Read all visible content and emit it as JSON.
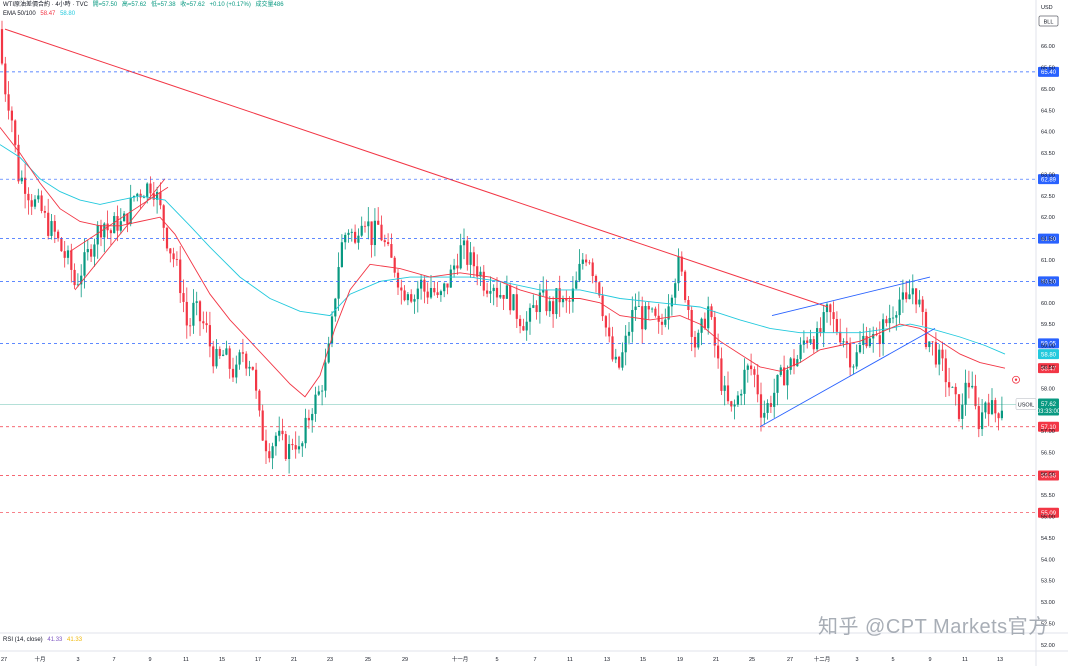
{
  "header": {
    "symbol": "WTI原油差價合約 · 4小時 · TVC",
    "open": "開=57.50",
    "high": "高=57.62",
    "low": "低=57.38",
    "close": "收=57.62",
    "change": "+0.10 (+0.17%)",
    "volume": "成交量486"
  },
  "ema_legend": {
    "label": "EMA 50/100",
    "ema50": "58.47",
    "ema100": "58.80"
  },
  "rsi_legend": {
    "label": "RSI (14, close)",
    "value": "41.33",
    "ma": "41.33"
  },
  "axis": {
    "currency": "USD",
    "ticker_badge": "BLL",
    "price_min": 52.3,
    "price_max": 66.8,
    "ticks": [
      "66.00",
      "65.50",
      "65.00",
      "64.50",
      "64.00",
      "63.50",
      "63.00",
      "62.50",
      "62.00",
      "61.50",
      "61.00",
      "60.50",
      "60.00",
      "59.50",
      "59.00",
      "58.50",
      "58.00",
      "57.50",
      "57.00",
      "56.50",
      "56.00",
      "55.50",
      "55.00",
      "54.50",
      "54.00",
      "53.50",
      "53.00",
      "52.50"
    ],
    "ticks_low": [
      "52.00"
    ],
    "dates": [
      "27",
      "十月",
      "3",
      "7",
      "9",
      "11",
      "15",
      "17",
      "21",
      "23",
      "25",
      "29",
      "十一月",
      "5",
      "7",
      "11",
      "13",
      "15",
      "19",
      "21",
      "25",
      "27",
      "十二月",
      "3",
      "5",
      "9",
      "11",
      "13"
    ]
  },
  "price_tags": [
    {
      "price": 65.4,
      "label": "65.40",
      "color": "#2962ff"
    },
    {
      "price": 62.89,
      "label": "62.89",
      "color": "#2962ff"
    },
    {
      "price": 61.5,
      "label": "61.50",
      "color": "#2962ff"
    },
    {
      "price": 60.5,
      "label": "60.50",
      "color": "#2962ff"
    },
    {
      "price": 59.05,
      "label": "59.05",
      "color": "#2962ff"
    },
    {
      "price": 58.8,
      "label": "58.80",
      "color": "#22c9dd"
    },
    {
      "price": 58.47,
      "label": "58.47",
      "color": "#f23645"
    },
    {
      "price": 57.1,
      "label": "57.10",
      "color": "#f23645"
    },
    {
      "price": 55.96,
      "label": "55.96",
      "color": "#f23645"
    },
    {
      "price": 55.09,
      "label": "55.09",
      "color": "#f23645"
    }
  ],
  "last_price": {
    "symbol": "USOIL",
    "price": "57.62",
    "countdown": "03:33:00",
    "color": "#089981"
  },
  "watermark": "知乎 @CPT Markets官方",
  "colors": {
    "up": "#089981",
    "down": "#f23645",
    "ema50": "#f23645",
    "ema100": "#22c9dd",
    "trend": "#f23645",
    "channel": "#2962ff"
  },
  "chart_data": {
    "type": "candlestick",
    "title": "WTI原油差價合約 · 4小時 · TVC",
    "ylim": [
      52.3,
      66.8
    ],
    "price_path": [
      [
        0,
        66.4
      ],
      [
        3,
        65.2
      ],
      [
        8,
        64.8
      ],
      [
        12,
        64.3
      ],
      [
        18,
        63.0
      ],
      [
        25,
        62.8
      ],
      [
        32,
        62.4
      ],
      [
        40,
        62.2
      ],
      [
        48,
        61.8
      ],
      [
        55,
        61.6
      ],
      [
        62,
        61.2
      ],
      [
        70,
        60.9
      ],
      [
        75,
        60.4
      ],
      [
        80,
        60.7
      ],
      [
        86,
        61.0
      ],
      [
        92,
        61.4
      ],
      [
        98,
        61.7
      ],
      [
        104,
        61.9
      ],
      [
        110,
        61.6
      ],
      [
        116,
        61.9
      ],
      [
        122,
        61.8
      ],
      [
        128,
        62.1
      ],
      [
        134,
        62.5
      ],
      [
        140,
        62.6
      ],
      [
        146,
        62.7
      ],
      [
        152,
        62.8
      ],
      [
        158,
        62.4
      ],
      [
        163,
        61.9
      ],
      [
        168,
        61.4
      ],
      [
        173,
        61.1
      ],
      [
        178,
        60.7
      ],
      [
        183,
        60.1
      ],
      [
        188,
        59.3
      ],
      [
        194,
        59.9
      ],
      [
        200,
        59.6
      ],
      [
        206,
        59.4
      ],
      [
        212,
        58.8
      ],
      [
        218,
        58.6
      ],
      [
        224,
        58.8
      ],
      [
        230,
        58.5
      ],
      [
        236,
        58.3
      ],
      [
        242,
        58.9
      ],
      [
        248,
        58.6
      ],
      [
        252,
        58.7
      ],
      [
        258,
        57.4
      ],
      [
        264,
        56.8
      ],
      [
        270,
        56.6
      ],
      [
        276,
        56.9
      ],
      [
        282,
        56.7
      ],
      [
        288,
        56.5
      ],
      [
        294,
        56.9
      ],
      [
        300,
        56.4
      ],
      [
        306,
        57.1
      ],
      [
        312,
        57.6
      ],
      [
        318,
        57.8
      ],
      [
        324,
        58.3
      ],
      [
        330,
        59.0
      ],
      [
        336,
        60.4
      ],
      [
        340,
        61.2
      ],
      [
        345,
        61.6
      ],
      [
        350,
        61.8
      ],
      [
        355,
        61.3
      ],
      [
        360,
        62.1
      ],
      [
        366,
        62.0
      ],
      [
        372,
        61.5
      ],
      [
        378,
        61.8
      ],
      [
        384,
        61.4
      ],
      [
        390,
        61.0
      ],
      [
        396,
        60.8
      ],
      [
        402,
        60.2
      ],
      [
        408,
        60.4
      ],
      [
        414,
        60.1
      ],
      [
        420,
        60.5
      ],
      [
        426,
        60.2
      ],
      [
        432,
        60.4
      ],
      [
        438,
        60.0
      ],
      [
        444,
        60.3
      ],
      [
        450,
        60.6
      ],
      [
        456,
        61.0
      ],
      [
        462,
        61.3
      ],
      [
        468,
        61.0
      ],
      [
        474,
        60.9
      ],
      [
        480,
        60.7
      ],
      [
        486,
        60.4
      ],
      [
        492,
        60.6
      ],
      [
        498,
        60.2
      ],
      [
        504,
        60.3
      ],
      [
        510,
        60.1
      ],
      [
        516,
        59.8
      ],
      [
        522,
        59.6
      ],
      [
        528,
        59.5
      ],
      [
        534,
        59.9
      ],
      [
        540,
        60.1
      ],
      [
        546,
        60.0
      ],
      [
        552,
        59.8
      ],
      [
        558,
        60.2
      ],
      [
        564,
        59.9
      ],
      [
        570,
        60.0
      ],
      [
        576,
        60.4
      ],
      [
        582,
        61.0
      ],
      [
        588,
        61.2
      ],
      [
        594,
        60.7
      ],
      [
        600,
        60.3
      ],
      [
        606,
        59.4
      ],
      [
        612,
        58.7
      ],
      [
        618,
        58.4
      ],
      [
        624,
        58.9
      ],
      [
        630,
        59.5
      ],
      [
        636,
        60.0
      ],
      [
        642,
        59.6
      ],
      [
        648,
        59.7
      ],
      [
        654,
        59.6
      ],
      [
        660,
        59.3
      ],
      [
        666,
        59.9
      ],
      [
        672,
        60.4
      ],
      [
        678,
        60.9
      ],
      [
        684,
        60.4
      ],
      [
        690,
        59.7
      ],
      [
        696,
        58.9
      ],
      [
        702,
        59.4
      ],
      [
        708,
        59.9
      ],
      [
        714,
        59.1
      ],
      [
        720,
        58.3
      ],
      [
        726,
        57.7
      ],
      [
        732,
        57.4
      ],
      [
        738,
        57.8
      ],
      [
        744,
        58.3
      ],
      [
        750,
        58.5
      ],
      [
        756,
        58.2
      ],
      [
        762,
        57.4
      ],
      [
        768,
        57.6
      ],
      [
        774,
        57.9
      ],
      [
        780,
        58.2
      ],
      [
        786,
        58.4
      ],
      [
        792,
        58.6
      ],
      [
        798,
        58.7
      ],
      [
        804,
        59.1
      ],
      [
        810,
        59.3
      ],
      [
        816,
        59.1
      ],
      [
        822,
        59.4
      ],
      [
        828,
        59.8
      ],
      [
        834,
        59.5
      ],
      [
        840,
        59.3
      ],
      [
        846,
        59.1
      ],
      [
        852,
        58.6
      ],
      [
        858,
        58.8
      ],
      [
        864,
        59.2
      ],
      [
        870,
        59.3
      ],
      [
        876,
        59.0
      ],
      [
        882,
        59.4
      ],
      [
        888,
        59.6
      ],
      [
        894,
        59.9
      ],
      [
        900,
        60.1
      ],
      [
        906,
        59.9
      ],
      [
        912,
        60.4
      ],
      [
        918,
        60.1
      ],
      [
        922,
        59.6
      ],
      [
        926,
        59.2
      ],
      [
        932,
        59.0
      ],
      [
        938,
        58.7
      ],
      [
        944,
        58.4
      ],
      [
        950,
        58.0
      ],
      [
        956,
        57.6
      ],
      [
        962,
        57.4
      ],
      [
        966,
        58.3
      ],
      [
        970,
        58.1
      ],
      [
        974,
        57.6
      ],
      [
        978,
        57.2
      ],
      [
        982,
        57.4
      ],
      [
        986,
        57.8
      ],
      [
        990,
        57.6
      ],
      [
        994,
        57.4
      ],
      [
        998,
        57.5
      ],
      [
        1002,
        57.62
      ]
    ],
    "ema50_path": [
      [
        0,
        64.1
      ],
      [
        20,
        63.5
      ],
      [
        40,
        62.8
      ],
      [
        60,
        62.2
      ],
      [
        80,
        61.9
      ],
      [
        100,
        61.8
      ],
      [
        120,
        61.8
      ],
      [
        140,
        61.9
      ],
      [
        160,
        62.0
      ],
      [
        175,
        61.6
      ],
      [
        190,
        61.0
      ],
      [
        210,
        60.2
      ],
      [
        230,
        59.6
      ],
      [
        250,
        59.1
      ],
      [
        270,
        58.6
      ],
      [
        290,
        58.1
      ],
      [
        305,
        57.8
      ],
      [
        320,
        58.3
      ],
      [
        335,
        59.4
      ],
      [
        350,
        60.3
      ],
      [
        370,
        60.9
      ],
      [
        400,
        60.8
      ],
      [
        430,
        60.6
      ],
      [
        460,
        60.7
      ],
      [
        490,
        60.6
      ],
      [
        520,
        60.3
      ],
      [
        550,
        60.1
      ],
      [
        580,
        60.1
      ],
      [
        600,
        60.0
      ],
      [
        620,
        59.7
      ],
      [
        650,
        59.6
      ],
      [
        680,
        59.7
      ],
      [
        700,
        59.5
      ],
      [
        720,
        59.1
      ],
      [
        740,
        58.8
      ],
      [
        760,
        58.5
      ],
      [
        780,
        58.4
      ],
      [
        800,
        58.6
      ],
      [
        820,
        58.9
      ],
      [
        840,
        59.0
      ],
      [
        860,
        59.1
      ],
      [
        880,
        59.3
      ],
      [
        900,
        59.5
      ],
      [
        920,
        59.4
      ],
      [
        940,
        59.1
      ],
      [
        960,
        58.8
      ],
      [
        980,
        58.6
      ],
      [
        1005,
        58.47
      ]
    ],
    "ema100_path": [
      [
        0,
        63.7
      ],
      [
        20,
        63.4
      ],
      [
        40,
        62.9
      ],
      [
        60,
        62.6
      ],
      [
        80,
        62.4
      ],
      [
        100,
        62.3
      ],
      [
        120,
        62.4
      ],
      [
        140,
        62.5
      ],
      [
        165,
        62.4
      ],
      [
        190,
        61.8
      ],
      [
        210,
        61.3
      ],
      [
        240,
        60.6
      ],
      [
        270,
        60.1
      ],
      [
        300,
        59.8
      ],
      [
        330,
        59.7
      ],
      [
        350,
        60.2
      ],
      [
        380,
        60.5
      ],
      [
        410,
        60.6
      ],
      [
        440,
        60.6
      ],
      [
        470,
        60.6
      ],
      [
        500,
        60.5
      ],
      [
        540,
        60.3
      ],
      [
        580,
        60.3
      ],
      [
        620,
        60.1
      ],
      [
        660,
        60.0
      ],
      [
        700,
        59.9
      ],
      [
        740,
        59.6
      ],
      [
        770,
        59.4
      ],
      [
        800,
        59.3
      ],
      [
        830,
        59.3
      ],
      [
        860,
        59.3
      ],
      [
        890,
        59.4
      ],
      [
        910,
        59.5
      ],
      [
        930,
        59.4
      ],
      [
        960,
        59.2
      ],
      [
        985,
        59.0
      ],
      [
        1005,
        58.8
      ]
    ],
    "trendline": [
      [
        5,
        66.4
      ],
      [
        828,
        59.9
      ]
    ],
    "channel_oct": [
      [
        [
          75,
          60.3
        ],
        [
          165,
          62.9
        ]
      ],
      [
        [
          70,
          61.2
        ],
        [
          168,
          62.7
        ]
      ]
    ],
    "channel_dec": [
      [
        [
          760,
          57.1
        ],
        [
          935,
          59.4
        ]
      ],
      [
        [
          772,
          59.7
        ],
        [
          930,
          60.6
        ]
      ]
    ]
  }
}
